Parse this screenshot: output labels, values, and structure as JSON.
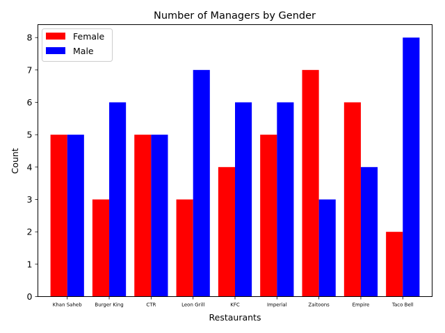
{
  "chart_data": {
    "type": "bar",
    "title": "Number of Managers by Gender",
    "xlabel": "Restaurants",
    "ylabel": "Count",
    "categories": [
      "Khan Saheb",
      "Burger King",
      "CTR",
      "Leon Grill",
      "KFC",
      "Imperial",
      "Zaitoons",
      "Empire",
      "Taco Bell"
    ],
    "series": [
      {
        "name": "Female",
        "color": "#ff0000",
        "values": [
          5,
          3,
          5,
          3,
          4,
          5,
          7,
          6,
          2
        ]
      },
      {
        "name": "Male",
        "color": "#0000ff",
        "values": [
          5,
          6,
          5,
          7,
          6,
          6,
          3,
          4,
          8
        ]
      }
    ],
    "ylim": [
      0,
      8.4
    ],
    "yticks": [
      0,
      1,
      2,
      3,
      4,
      5,
      6,
      7,
      8
    ],
    "grid": false,
    "legend_position": "top-left"
  }
}
